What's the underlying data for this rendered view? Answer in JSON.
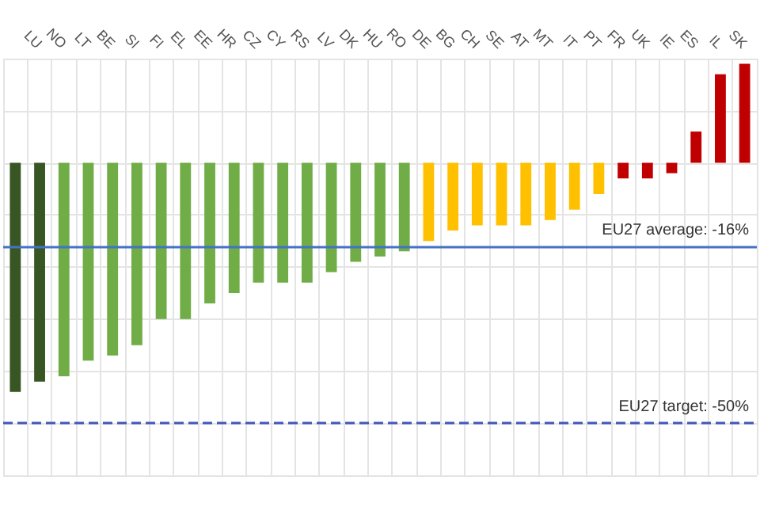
{
  "chart_data": {
    "type": "bar",
    "categories": [
      null,
      "LU",
      "NO",
      "LT",
      "BE",
      "SI",
      "FI",
      "EL",
      "EE",
      "HR",
      "CZ",
      "CY",
      "RS",
      "LV",
      "DK",
      "HU",
      "RO",
      "DE",
      "BG",
      "CH",
      "SE",
      "AT",
      "MT",
      "IT",
      "PT",
      "FR",
      "UK",
      "IE",
      "ES",
      "IL",
      "SK"
    ],
    "values": [
      -44,
      -42,
      -41,
      -38,
      -37,
      -35,
      -30,
      -30,
      -27,
      -25,
      -23,
      -23,
      -23,
      -21,
      -19,
      -18,
      -17,
      -15,
      -13,
      -12,
      -12,
      -12,
      -11,
      -9,
      -6,
      -3,
      -3,
      -2,
      6,
      17,
      19
    ],
    "colors": [
      "#375623",
      "#375623",
      "#70ad47",
      "#70ad47",
      "#70ad47",
      "#70ad47",
      "#70ad47",
      "#70ad47",
      "#70ad47",
      "#70ad47",
      "#70ad47",
      "#70ad47",
      "#70ad47",
      "#70ad47",
      "#70ad47",
      "#70ad47",
      "#70ad47",
      "#ffc000",
      "#ffc000",
      "#ffc000",
      "#ffc000",
      "#ffc000",
      "#ffc000",
      "#ffc000",
      "#ffc000",
      "#c00000",
      "#c00000",
      "#c00000",
      "#c00000",
      "#c00000",
      "#c00000"
    ],
    "ylim": [
      -60,
      20
    ],
    "yticks": [
      -60,
      -50,
      -40,
      -30,
      -20,
      -10,
      0,
      10,
      20
    ],
    "tick_labels": "x",
    "grid": true,
    "ref_lines": [
      {
        "axis": "y",
        "value": -16,
        "label": "EU27 average: -16%",
        "color": "#4472c4",
        "line_style": "solid"
      },
      {
        "axis": "y",
        "value": -50,
        "label": "EU27 target: -50%",
        "color": "#4455bb",
        "line_style": "dashed"
      }
    ]
  }
}
